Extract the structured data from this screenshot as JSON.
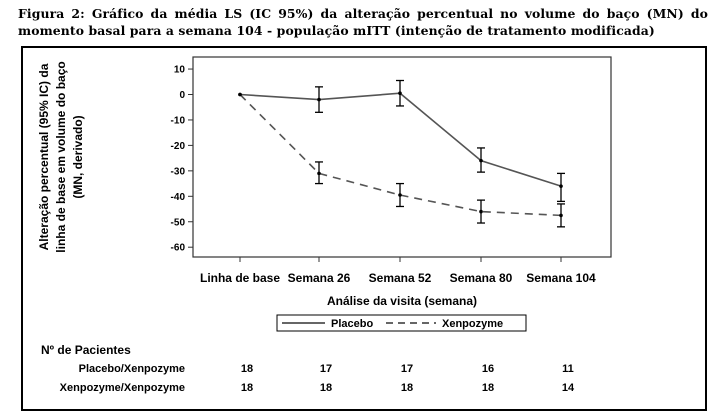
{
  "caption": "Figura 2: Gráfico da média LS (IC 95%) da alteração percentual no volume do baço (MN) do momento basal para a semana 104 - população mITT (intenção de tratamento modificada)",
  "chart_data": {
    "type": "line",
    "categories": [
      "Linha de base",
      "Semana 26",
      "Semana 52",
      "Semana 80",
      "Semana 104"
    ],
    "xlabel": "Análise da visita (semana)",
    "ylabel": [
      "Alteração percentual (95% IC) da",
      "linha de base em volume do baço",
      "(MN, derivado)"
    ],
    "ylim": [
      -65,
      12
    ],
    "yticks": [
      10,
      0,
      -10,
      -20,
      -30,
      -40,
      -50,
      -60
    ],
    "grid": false,
    "legend_position": "bottom",
    "series": [
      {
        "name": "Placebo",
        "style": "solid",
        "values": [
          0,
          -2,
          0.5,
          -26,
          -36
        ],
        "ci_low": [
          0,
          -7,
          -4.5,
          -30.5,
          -42
        ],
        "ci_high": [
          0,
          3,
          5.5,
          -21,
          -31
        ]
      },
      {
        "name": "Xenpozyme",
        "style": "dashed",
        "values": [
          0,
          -31,
          -39.5,
          -46,
          -47.5
        ],
        "ci_low": [
          0,
          -35,
          -44,
          -50.5,
          -52
        ],
        "ci_high": [
          0,
          -26.5,
          -35,
          -41.5,
          -43
        ]
      }
    ]
  },
  "patients_table": {
    "title": "Nº de Pacientes",
    "rows": [
      {
        "label": "Placebo/Xenpozyme",
        "values": [
          "18",
          "17",
          "17",
          "16",
          "11"
        ]
      },
      {
        "label": "Xenpozyme/Xenpozyme",
        "values": [
          "18",
          "18",
          "18",
          "18",
          "14"
        ]
      }
    ]
  }
}
